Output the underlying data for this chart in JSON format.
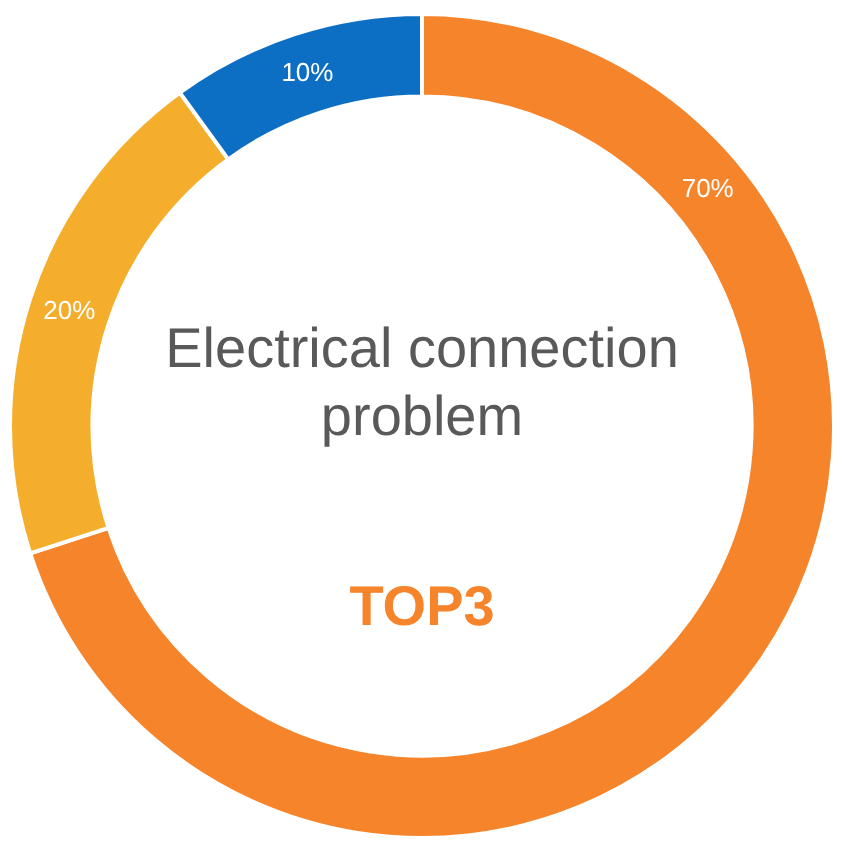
{
  "chart_data": {
    "type": "donut",
    "title": "Electrical connection problem",
    "annotations": [
      "TOP3"
    ],
    "categories": [
      null,
      null,
      null
    ],
    "values": [
      70,
      20,
      10
    ],
    "colors": [
      "#f5842a",
      "#f5ae2b",
      "#0c6fc4"
    ],
    "value_labels": [
      "70%",
      "20%",
      "10%"
    ],
    "legend": false
  }
}
